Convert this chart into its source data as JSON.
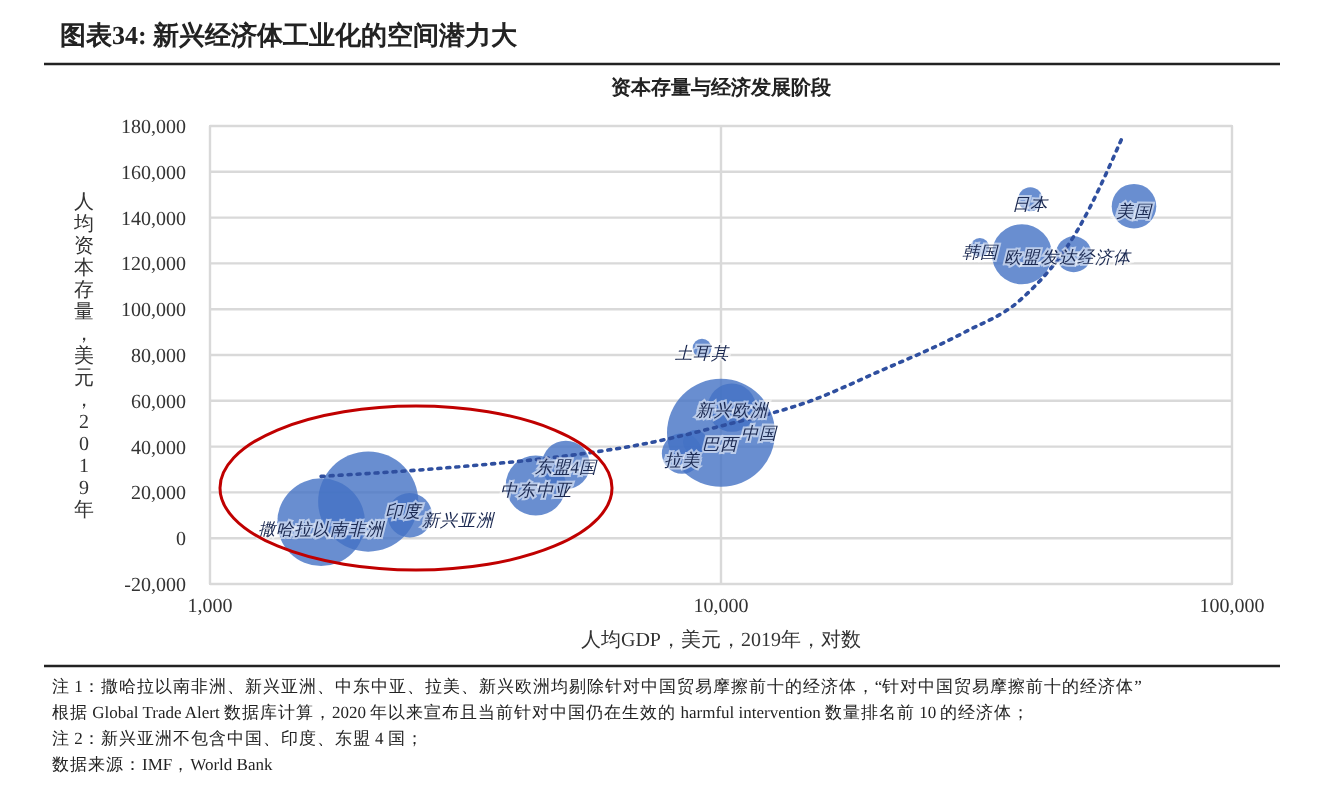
{
  "chart_data": {
    "type": "bubble",
    "title": "图表34: 新兴经济体工业化的空间潜力大",
    "subtitle": "资本存量与经济发展阶段",
    "xlabel": "人均GDP，美元，2019年，对数",
    "ylabel": "人均资本存量，美元，2019年",
    "log": "x",
    "grid": true,
    "xlim": [
      1000,
      100000
    ],
    "xticks": [
      {
        "value": 1000,
        "label": "1,000"
      },
      {
        "value": 10000,
        "label": "10,000"
      },
      {
        "value": 100000,
        "label": "100,000"
      }
    ],
    "ylim": [
      -20000,
      180000
    ],
    "yticks": [
      {
        "value": -20000,
        "label": "-20,000"
      },
      0,
      {
        "value": 20000,
        "label": "20,000"
      },
      {
        "value": 40000,
        "label": "40,000"
      },
      {
        "value": 60000,
        "label": "60,000"
      },
      {
        "value": 80000,
        "label": "80,000"
      },
      {
        "value": 100000,
        "label": "100,000"
      },
      {
        "value": 120000,
        "label": "120,000"
      },
      {
        "value": 140000,
        "label": "140,000"
      },
      {
        "value": 160000,
        "label": "160,000"
      },
      {
        "value": 180000,
        "label": "180,000"
      }
    ],
    "series": [
      {
        "color": "#4472c4",
        "x": [
          1650,
          2040,
          2460,
          4340,
          4970,
          9180,
          8390,
          8900,
          10000,
          10500,
          32100,
          38800,
          49000,
          40300,
          64300
        ],
        "values": [
          7000,
          16000,
          10000,
          23000,
          32000,
          83000,
          37000,
          42000,
          46000,
          57000,
          127000,
          124000,
          124000,
          148000,
          145000
        ],
        "sizes": [
          0.66,
          0.86,
          0.17,
          0.31,
          0.2,
          0.03,
          0.14,
          0.05,
          1,
          0.2,
          0.03,
          0.31,
          0.11,
          0.05,
          0.17
        ]
      },
      {
        "type": "line",
        "color": "#2f4f9f",
        "line_style": "dotted",
        "x": [
          1650,
          3000,
          5000,
          7000,
          10000,
          15000,
          20000,
          30000,
          38500,
          50000,
          61000
        ],
        "values": [
          27000,
          31000,
          36000,
          41000,
          49000,
          60000,
          72000,
          90000,
          104000,
          135000,
          175000
        ]
      }
    ],
    "annotations": [
      {
        "text": "撒哈拉以南非洲",
        "x": 1650,
        "y": 4000
      },
      {
        "text": "印度",
        "x": 2040,
        "y": 12000
      },
      {
        "text": "新兴亚洲",
        "x": 2460,
        "y": 8000
      },
      {
        "text": "中东中亚",
        "x": 4340,
        "y": 21000
      },
      {
        "text": "东盟4国",
        "x": 4970,
        "y": 31000
      },
      {
        "text": "土耳其",
        "x": 9180,
        "y": 81000
      },
      {
        "text": "拉美",
        "x": 8390,
        "y": 34000
      },
      {
        "text": "巴西",
        "x": 8900,
        "y": 41000
      },
      {
        "text": "中国",
        "x": 10000,
        "y": 46000
      },
      {
        "text": "新兴欧洲",
        "x": 10500,
        "y": 56000
      },
      {
        "text": "韩国",
        "x": 32100,
        "y": 125000
      },
      {
        "text": "欧盟",
        "x": 38800,
        "y": 123000
      },
      {
        "text": "发达经济体",
        "x": 49000,
        "y": 123000
      },
      {
        "text": "日本",
        "x": 40300,
        "y": 146000
      },
      {
        "text": "美国",
        "x": 64300,
        "y": 143000
      },
      "注 1：撒哈拉以南非洲、新兴亚洲、中东中亚、拉美、新兴欧洲均剔除针对中国贸易摩擦前十的经济体，“针对中国贸易摩擦前十的经济体”",
      "根据 Global Trade Alert 数据库计算，2020 年以来宣布且当前针对中国仍在生效的 harmful intervention 数量排名前 10 的经济体；",
      "注 2：新兴亚洲不包含中国、印度、东盟 4 国；",
      "数据来源：IMF，World Bank"
    ]
  }
}
